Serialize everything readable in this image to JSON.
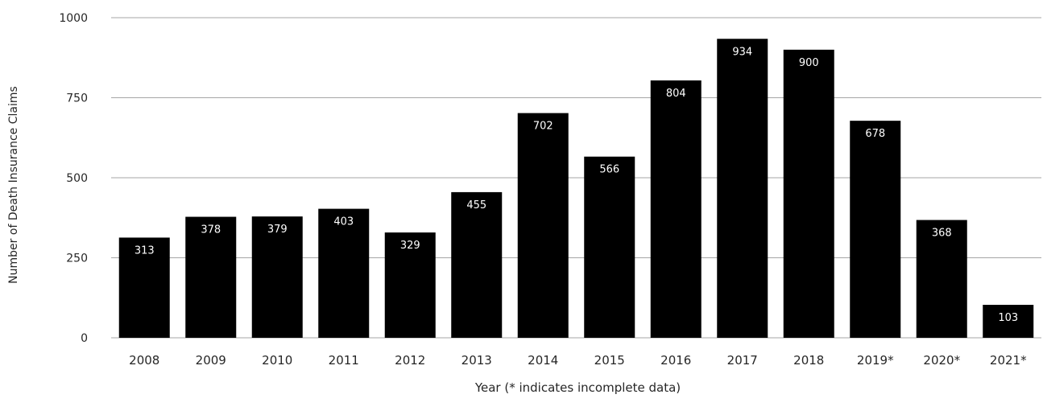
{
  "chart_data": {
    "type": "bar",
    "title": "",
    "xlabel": "Year (* indicates incomplete data)",
    "ylabel": "Number of Death Insurance Claims",
    "ylim": [
      0,
      1000
    ],
    "yticks": [
      0,
      250,
      500,
      750,
      1000
    ],
    "grid": true,
    "categories": [
      "2008",
      "2009",
      "2010",
      "2011",
      "2012",
      "2013",
      "2014",
      "2015",
      "2016",
      "2017",
      "2018",
      "2019*",
      "2020*",
      "2021*"
    ],
    "values": [
      313,
      378,
      379,
      403,
      329,
      455,
      702,
      566,
      804,
      934,
      900,
      678,
      368,
      103
    ],
    "bar_color": "#000000",
    "data_label_color": "#ffffff",
    "grid_color": "#a6a6a6"
  }
}
